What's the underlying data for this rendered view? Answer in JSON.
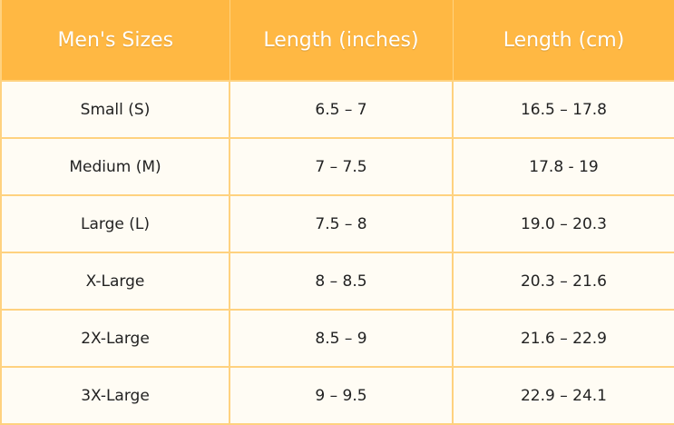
{
  "table": {
    "headers": [
      "Men's Sizes",
      "Length (inches)",
      "Length (cm)"
    ],
    "rows": [
      [
        "Small (S)",
        "6.5 – 7",
        "16.5 – 17.8"
      ],
      [
        "Medium (M)",
        "7 – 7.5",
        "17.8 - 19"
      ],
      [
        "Large (L)",
        "7.5 – 8",
        "19.0 – 20.3"
      ],
      [
        "X-Large",
        "8 – 8.5",
        "20.3 – 21.6"
      ],
      [
        "2X-Large",
        "8.5 – 9",
        "21.6 – 22.9"
      ],
      [
        "3X-Large",
        "9 – 9.5",
        "22.9 – 24.1"
      ]
    ]
  },
  "colors": {
    "header_bg": "#ffb843",
    "body_bg": "#fffcf4",
    "border": "#ffd27f"
  }
}
